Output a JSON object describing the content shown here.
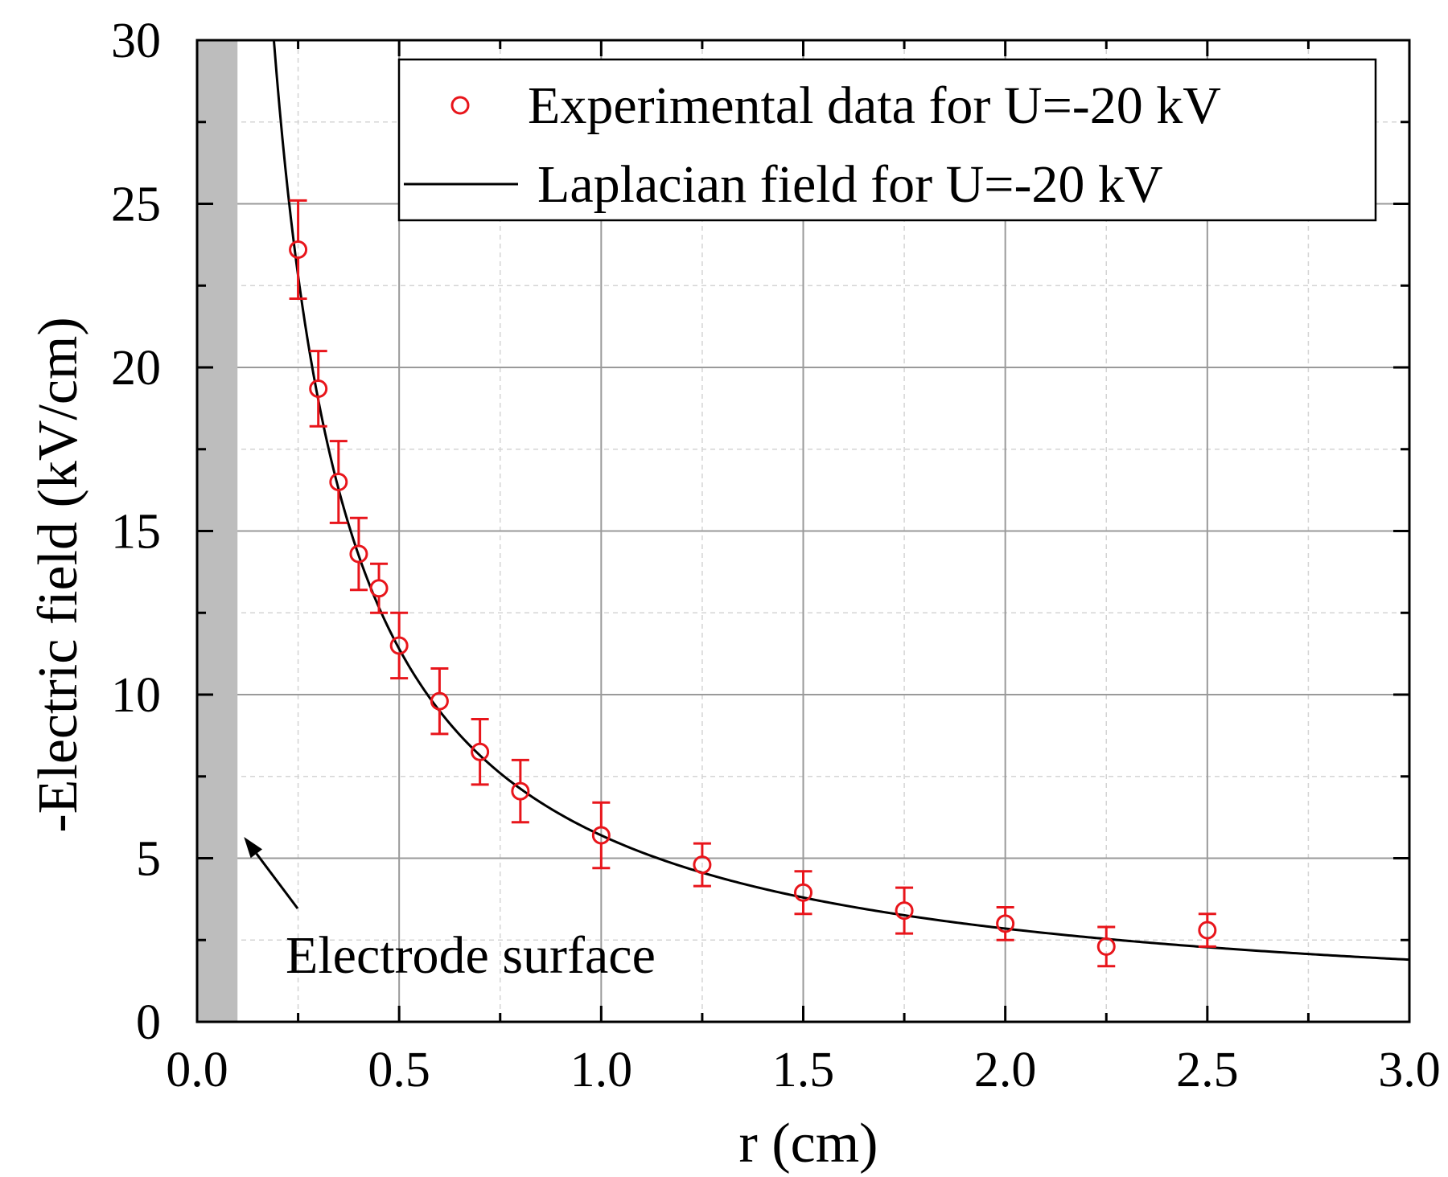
{
  "chart_data": {
    "type": "scatter",
    "title": "",
    "xlabel": "r (cm)",
    "ylabel": "-Electric field (kV/cm)",
    "xlim": [
      0.0,
      3.0
    ],
    "ylim": [
      0,
      30
    ],
    "xticks": [
      "0.0",
      "0.5",
      "1.0",
      "1.5",
      "2.0",
      "2.5",
      "3.0"
    ],
    "yticks": [
      "0",
      "5",
      "10",
      "15",
      "20",
      "25",
      "30"
    ],
    "grid": true,
    "legend_position": "top-right",
    "electrode_region": [
      0.0,
      0.1
    ],
    "series": [
      {
        "name": "Experimental data for U=-20 kV",
        "kind": "markers-with-errorbars",
        "color": "#e8151b",
        "x": [
          0.25,
          0.3,
          0.35,
          0.4,
          0.45,
          0.5,
          0.6,
          0.7,
          0.8,
          1.0,
          1.25,
          1.5,
          1.75,
          2.0,
          2.25,
          2.5
        ],
        "y": [
          23.6,
          19.35,
          16.5,
          14.3,
          13.25,
          11.5,
          9.8,
          8.25,
          7.05,
          5.7,
          4.8,
          3.95,
          3.4,
          3.0,
          2.3,
          2.8
        ],
        "err": [
          1.5,
          1.15,
          1.25,
          1.1,
          0.75,
          1.0,
          1.0,
          1.0,
          0.95,
          1.0,
          0.65,
          0.65,
          0.7,
          0.5,
          0.6,
          0.5
        ]
      },
      {
        "name": "Laplacian field for U=-20 kV",
        "kind": "line",
        "color": "#000000",
        "formula": "E = 5.7 / r",
        "coefficient": 5.7,
        "x_start": 0.19,
        "x_end": 3.0
      }
    ],
    "annotations": [
      {
        "text": "Electrode surface",
        "points_to": {
          "x": 0.1,
          "y": 5.7
        }
      }
    ]
  }
}
